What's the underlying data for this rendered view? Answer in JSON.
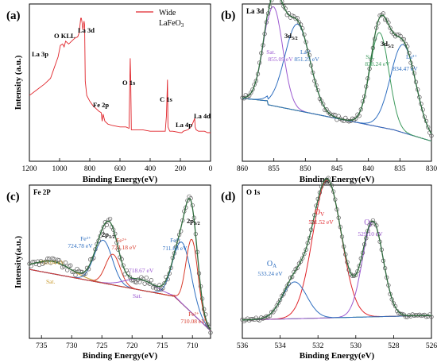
{
  "chart_data": [
    {
      "panel": "(a)",
      "type": "line",
      "xlabel": "Binding Energy(eV)",
      "ylabel": "Intensity (a.u.)",
      "xlim": [
        1200,
        0
      ],
      "xticks": [
        "1200",
        "1000",
        "800",
        "600",
        "400",
        "200",
        "0"
      ],
      "legend": {
        "label": "Wide",
        "sub": "LaFeO",
        "sub3": "3",
        "color": "#e0242a",
        "position": "top-right"
      },
      "annotations": [
        "La 3p",
        "O KLL",
        "La 3d",
        "Fe 2p",
        "O 1s",
        "C 1s",
        "La 4p",
        "La 4d"
      ],
      "series": [
        {
          "color": "#e0242a",
          "x": [
            1200,
            1150,
            1100,
            1060,
            1040,
            1020,
            1010,
            995,
            980,
            970,
            960,
            940,
            920,
            900,
            880,
            870,
            860,
            856,
            851,
            846,
            838,
            834,
            830,
            820,
            800,
            780,
            760,
            740,
            725,
            718,
            712,
            700,
            680,
            650,
            600,
            560,
            540,
            532,
            529,
            525,
            520,
            500,
            450,
            400,
            350,
            320,
            300,
            292,
            285,
            282,
            270,
            250,
            200,
            190,
            180,
            150,
            130,
            120,
            105,
            102,
            95,
            80,
            60,
            40,
            20,
            0
          ],
          "y": [
            46,
            50,
            54,
            58,
            64,
            70,
            73,
            81,
            82,
            80,
            84,
            82,
            84,
            86,
            87,
            90,
            100,
            100,
            97,
            92,
            98,
            95,
            56,
            46,
            42,
            39,
            37,
            35,
            34,
            28,
            33,
            28,
            26,
            25,
            24,
            24,
            23,
            72,
            58,
            22,
            22,
            22,
            22,
            21,
            21,
            21,
            21,
            32,
            57,
            24,
            21,
            21,
            20,
            20,
            21,
            22,
            24,
            26,
            30,
            24,
            22,
            21,
            21,
            21,
            20,
            20
          ]
        }
      ]
    },
    {
      "panel": "(b)",
      "title": "La 3d",
      "type": "scatter",
      "xlabel": "Binding Energy(eV)",
      "xlim": [
        860,
        830
      ],
      "xticks": [
        "860",
        "855",
        "850",
        "845",
        "840",
        "835",
        "830"
      ],
      "labels": [
        {
          "text": "3d",
          "sub": "3/2"
        },
        {
          "text": "3d",
          "sub": "5/2"
        },
        {
          "text": "Sat.",
          "sub": "855.09 eV"
        },
        {
          "text": "La³⁺",
          "sub": "851.25 eV"
        },
        {
          "text": "Sat.",
          "sub": "838.24 eV"
        },
        {
          "text": "La³⁺",
          "sub": "834.47 eV"
        }
      ],
      "colors": {
        "fit": "#2e6b3c",
        "sat": "#9b59d0",
        "la": "#2f6fc0",
        "sat2": "#3c9a5c",
        "bg": "#c99a2e"
      },
      "peaks": [
        {
          "name": "Sat.",
          "center": 855.09,
          "amp": 0.63,
          "width": 1.5
        },
        {
          "name": "La³⁺",
          "center": 851.25,
          "amp": 0.55,
          "width": 2.0
        },
        {
          "name": "Sat.",
          "center": 838.24,
          "amp": 0.6,
          "width": 1.5
        },
        {
          "name": "La³⁺",
          "center": 834.47,
          "amp": 0.56,
          "width": 2.0
        }
      ]
    },
    {
      "panel": "(c)",
      "title": "Fe 2P",
      "type": "scatter",
      "xlabel": "Binding Energy(eV)",
      "ylabel": "Intensity(a.u.)",
      "xlim": [
        737,
        707
      ],
      "xticks": [
        "735",
        "730",
        "725",
        "720",
        "715",
        "710"
      ],
      "labels": [
        {
          "text": "2p",
          "sub": "1/2"
        },
        {
          "text": "2p",
          "sub": "3/2"
        },
        {
          "text": "733.04 eV"
        },
        {
          "text": "Sat."
        },
        {
          "text": "Fe³⁺",
          "sub": "724.78 eV"
        },
        {
          "text": "Fe²⁺",
          "sub": "723.18 eV"
        },
        {
          "text": "718.67 eV"
        },
        {
          "text": "Sat."
        },
        {
          "text": "Fe³⁺",
          "sub": "711.68 eV"
        },
        {
          "text": "Fe²⁺",
          "sub": "710.08 eV"
        }
      ],
      "colors": {
        "fit": "#2e6b3c",
        "fe3": "#2f6fc0",
        "fe2": "#d83a2a",
        "sat1": "#c99a2e",
        "sat2": "#9b59d0",
        "bg": "#17b7c7"
      },
      "peaks": [
        {
          "name": "Sat.",
          "center": 733.04,
          "amp": 0.08,
          "width": 3.0
        },
        {
          "name": "Fe³⁺",
          "center": 724.78,
          "amp": 0.28,
          "width": 1.5
        },
        {
          "name": "Fe²⁺",
          "center": 723.18,
          "amp": 0.2,
          "width": 1.2
        },
        {
          "name": "Sat.",
          "center": 718.67,
          "amp": 0.07,
          "width": 2.5
        },
        {
          "name": "Fe³⁺",
          "center": 711.68,
          "amp": 0.4,
          "width": 1.5
        },
        {
          "name": "Fe²⁺",
          "center": 710.08,
          "amp": 0.48,
          "width": 1.0
        }
      ]
    },
    {
      "panel": "(d)",
      "title": "O 1s",
      "type": "scatter",
      "xlabel": "Binding Energy(eV)",
      "xlim": [
        536,
        526
      ],
      "xticks": [
        "536",
        "534",
        "532",
        "530",
        "528",
        "526"
      ],
      "labels": [
        {
          "text": "O",
          "sub": "V",
          "value": "531.52 eV"
        },
        {
          "text": "O",
          "sub": "L",
          "value": "529.10 eV"
        },
        {
          "text": "O",
          "sub": "A",
          "value": "533.24 eV"
        }
      ],
      "colors": {
        "fit": "#2e6b3c",
        "ov": "#e0242a",
        "ol": "#9b59d0",
        "oa": "#2f6fc0",
        "bg": "#3c9a5c"
      },
      "peaks": [
        {
          "name": "O_V",
          "center": 531.52,
          "amp": 0.9,
          "width": 0.75
        },
        {
          "name": "O_L",
          "center": 529.1,
          "amp": 0.62,
          "width": 0.55
        },
        {
          "name": "O_A",
          "center": 533.24,
          "amp": 0.24,
          "width": 0.65
        }
      ]
    }
  ]
}
